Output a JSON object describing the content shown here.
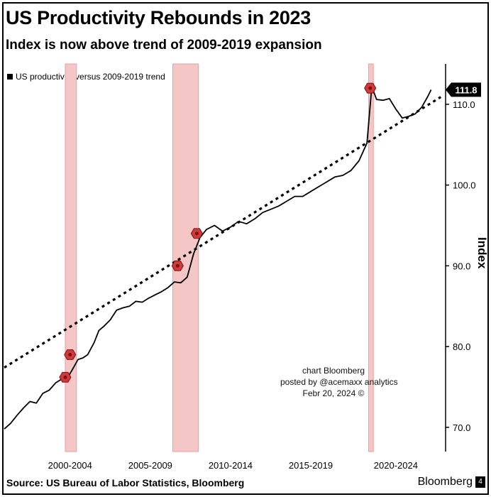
{
  "header": {
    "title": "US Productivity Rebounds in 2023",
    "subtitle": "Index is now above trend of 2009-2019 expansion"
  },
  "footer": {
    "source": "Source: US Bureau of Labor Statistics, Bloomberg",
    "brand": "Bloomberg",
    "brand_mark": "4"
  },
  "credit": {
    "line1": "chart Bloomberg",
    "line2": "posted by @acemaxx analytics",
    "line3": "Febr 20, 2024 ©"
  },
  "colors": {
    "recession_fill": "#f4c6c6",
    "recession_edge": "#e8a0a0",
    "series": "#000000",
    "marker": "#d03a3a"
  },
  "chart_data": {
    "type": "line",
    "title": "US Productivity Rebounds in 2023",
    "ylabel": "Index",
    "ylim": [
      67,
      115
    ],
    "xlim": [
      1997.4,
      2024.9
    ],
    "yticks": [
      70,
      80,
      90,
      100,
      110
    ],
    "ytick_labels": [
      "70.0",
      "80.0",
      "90.0",
      "100.0",
      "110.0"
    ],
    "xtick_labels": [
      {
        "label": "2000-2004",
        "x": 2001.5
      },
      {
        "label": "2005-2009",
        "x": 2006.5
      },
      {
        "label": "2010-2014",
        "x": 2011.5
      },
      {
        "label": "2015-2019",
        "x": 2016.5
      },
      {
        "label": "2020-2024",
        "x": 2021.8
      }
    ],
    "last_value_label": "111.8",
    "last_value": 111.8,
    "recessions": [
      {
        "start": 2001.2,
        "end": 2001.9
      },
      {
        "start": 2007.9,
        "end": 2009.5
      },
      {
        "start": 2020.1,
        "end": 2020.4
      }
    ],
    "markers": [
      {
        "x": 2001.2,
        "y": 76.2
      },
      {
        "x": 2001.5,
        "y": 79.0
      },
      {
        "x": 2008.2,
        "y": 90.0
      },
      {
        "x": 2009.4,
        "y": 94.0
      },
      {
        "x": 2020.2,
        "y": 112.0
      }
    ],
    "series": [
      {
        "name": "US productivity versus 2009-2019 trend",
        "x": [
          1997.4,
          1997.8,
          1998.2,
          1998.6,
          1999.0,
          1999.4,
          1999.8,
          2000.2,
          2000.6,
          2001.0,
          2001.3,
          2001.6,
          2002.0,
          2002.3,
          2002.6,
          2003.0,
          2003.3,
          2003.6,
          2004.0,
          2004.4,
          2004.8,
          2005.2,
          2005.6,
          2006.0,
          2006.4,
          2006.8,
          2007.2,
          2007.6,
          2008.0,
          2008.4,
          2008.8,
          2009.2,
          2009.6,
          2010.0,
          2010.5,
          2011.0,
          2011.5,
          2012.0,
          2012.5,
          2013.0,
          2013.5,
          2014.0,
          2014.5,
          2015.0,
          2015.5,
          2016.0,
          2016.5,
          2017.0,
          2017.5,
          2018.0,
          2018.5,
          2019.0,
          2019.5,
          2020.0,
          2020.3,
          2020.6,
          2021.0,
          2021.4,
          2021.8,
          2022.2,
          2022.6,
          2023.0,
          2023.4,
          2023.8,
          2024.0
        ],
        "values": [
          69.8,
          70.5,
          71.5,
          72.4,
          73.2,
          73.0,
          74.2,
          74.6,
          75.5,
          76.0,
          76.0,
          77.0,
          78.4,
          78.6,
          79.0,
          80.5,
          82.0,
          82.5,
          83.3,
          84.5,
          84.8,
          85.0,
          85.6,
          85.5,
          86.0,
          86.4,
          86.8,
          87.3,
          88.0,
          87.9,
          88.6,
          91.5,
          93.5,
          94.5,
          95.0,
          94.3,
          94.8,
          95.5,
          95.2,
          95.8,
          96.6,
          97.0,
          97.4,
          98.0,
          98.6,
          98.6,
          99.2,
          99.8,
          100.4,
          101.0,
          101.2,
          101.8,
          103.0,
          105.2,
          112.2,
          110.6,
          110.5,
          110.7,
          109.4,
          108.3,
          108.5,
          108.8,
          109.6,
          111.0,
          111.8
        ]
      },
      {
        "name": "2009-2019 trend",
        "x": [
          1997.4,
          2024.6
        ],
        "values": [
          77.4,
          110.9
        ]
      }
    ]
  }
}
